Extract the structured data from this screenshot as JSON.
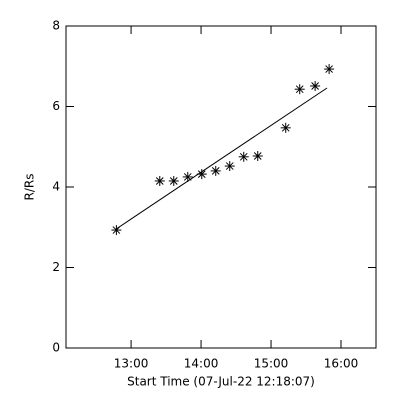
{
  "chart_data": {
    "type": "scatter",
    "x_label": "Start Time (07-Jul-22 12:18:07)",
    "y_label": "R/Rs",
    "x": [
      12.79,
      13.41,
      13.61,
      13.81,
      14.01,
      14.21,
      14.41,
      14.61,
      14.81,
      15.21,
      15.41,
      15.63,
      15.83
    ],
    "values": [
      2.93,
      4.15,
      4.15,
      4.25,
      4.32,
      4.4,
      4.52,
      4.75,
      4.77,
      5.47,
      6.43,
      6.51,
      6.93
    ],
    "color": "#000000",
    "marker": "asterisk",
    "fit": {
      "x": [
        12.79,
        15.8
      ],
      "y": [
        2.96,
        6.46
      ],
      "color": "#000000"
    },
    "xlim": [
      12.07,
      16.5
    ],
    "ylim": [
      0,
      8
    ],
    "xticks": [
      {
        "value": 13,
        "label": "13:00"
      },
      {
        "value": 14,
        "label": "14:00"
      },
      {
        "value": 15,
        "label": "15:00"
      },
      {
        "value": 16,
        "label": "16:00"
      }
    ],
    "yticks": [
      0,
      2,
      4,
      6,
      8
    ],
    "grid": false
  }
}
